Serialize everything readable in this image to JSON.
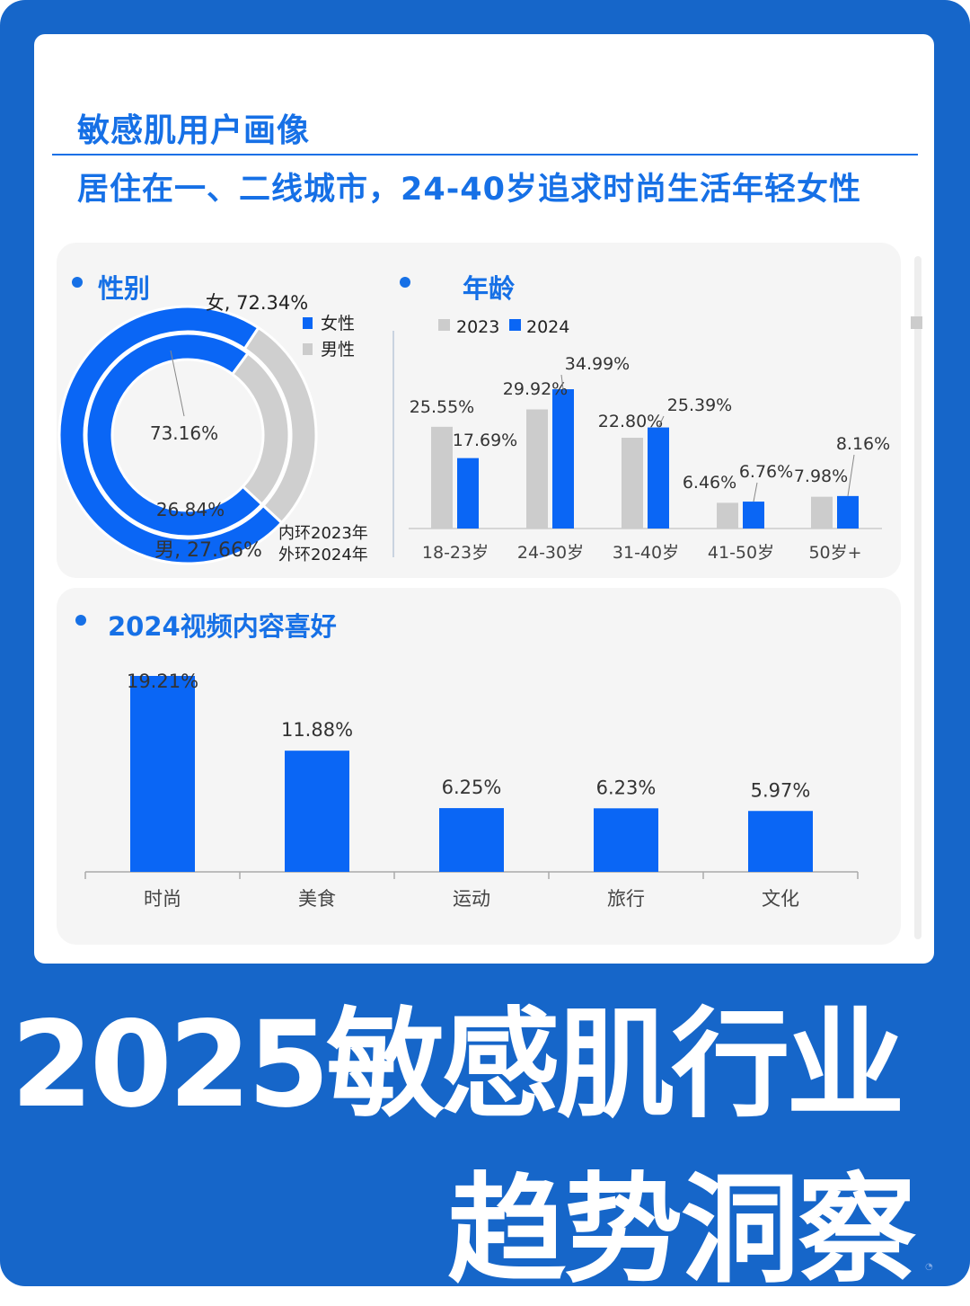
{
  "header": {
    "title": "敏感肌用户画像",
    "subtitle": "居住在一、二线城市，24-40岁追求时尚生活年轻女性"
  },
  "sections": {
    "gender": "性别",
    "age": "年龄",
    "video": "2024视频内容喜好"
  },
  "bottom": {
    "line1": "2025敏感肌行业",
    "line2": "趋势洞察"
  },
  "colors": {
    "brand_blue": "#1666c9",
    "accent_blue": "#0a66f5",
    "gray_2023": "#cccccc",
    "male_gray": "#cfcfcf"
  },
  "chart_data": [
    {
      "type": "pie",
      "variant": "double-donut",
      "rings": [
        {
          "name": "内环2023年",
          "slices": [
            {
              "label": "女",
              "value": 73.16,
              "text": "73.16%"
            },
            {
              "label": "男",
              "value": 26.84,
              "text": "26.84%"
            }
          ]
        },
        {
          "name": "外环2024年",
          "slices": [
            {
              "label": "女",
              "value": 72.34,
              "text": "女, 72.34%"
            },
            {
              "label": "男",
              "value": 27.66,
              "text": "男, 27.66%"
            }
          ]
        }
      ],
      "legend": [
        "女性",
        "男性"
      ],
      "ring_note": [
        "内环2023年",
        "外环2024年"
      ]
    },
    {
      "type": "bar",
      "categories": [
        "18-23岁",
        "24-30岁",
        "31-40岁",
        "41-50岁",
        "50岁+"
      ],
      "series": [
        {
          "name": "2023",
          "values": [
            25.55,
            29.92,
            22.8,
            6.46,
            7.98
          ],
          "labels": [
            "25.55%",
            "29.92%",
            "22.80%",
            "6.46%",
            "7.98%"
          ]
        },
        {
          "name": "2024",
          "values": [
            17.69,
            34.99,
            25.39,
            6.76,
            8.16
          ],
          "labels": [
            "17.69%",
            "34.99%",
            "25.39%",
            "6.76%",
            "8.16%"
          ]
        }
      ],
      "ylim": [
        0,
        40
      ]
    },
    {
      "type": "bar",
      "categories": [
        "时尚",
        "美食",
        "运动",
        "旅行",
        "文化"
      ],
      "values": [
        19.21,
        11.88,
        6.25,
        6.23,
        5.97
      ],
      "labels": [
        "19.21%",
        "11.88%",
        "6.25%",
        "6.23%",
        "5.97%"
      ],
      "ylim": [
        0,
        20
      ]
    }
  ]
}
